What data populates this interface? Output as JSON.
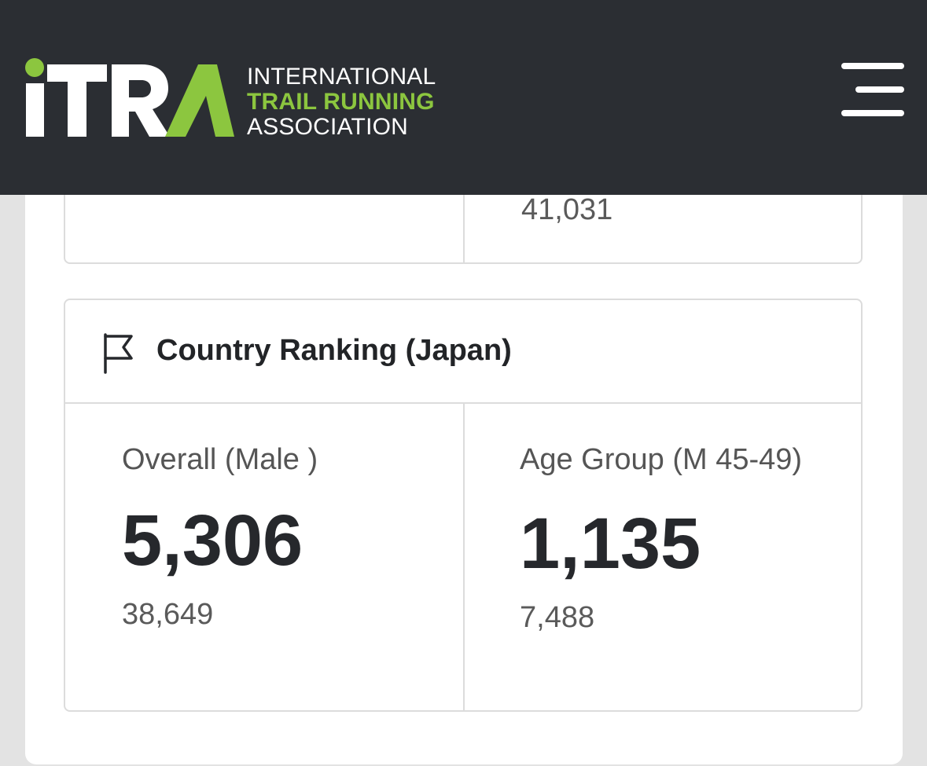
{
  "header": {
    "logo": {
      "mark": "iTRA",
      "line1": "INTERNATIONAL",
      "line2": "TRAIL RUNNING",
      "line3": "ASSOCIATION",
      "accent_color": "#8cc63f"
    },
    "menu_icon": "hamburger-menu-icon",
    "background_color": "#2b2e33"
  },
  "previous_card": {
    "total": "41,031"
  },
  "country_ranking": {
    "icon": "flag-icon",
    "title": "Country Ranking (Japan)",
    "overall": {
      "label": "Overall (Male )",
      "rank": "5,306",
      "total": "38,649"
    },
    "age_group": {
      "label": "Age Group (M 45-49)",
      "rank": "1,135",
      "total": "7,488"
    }
  }
}
